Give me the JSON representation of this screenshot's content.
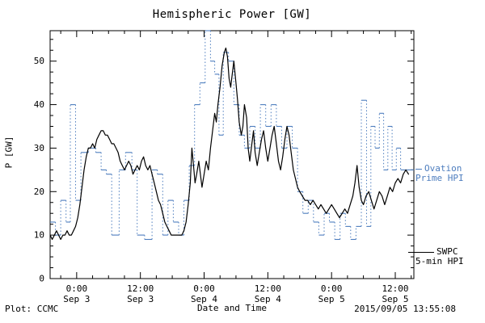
{
  "title": "Hemispheric Power [GW]",
  "footer": {
    "plot_credit": "Plot: CCMC",
    "timestamp": "2015/09/05 13:55:08"
  },
  "legend": {
    "ovation": {
      "line1": "Ovation",
      "line2": "Prime HPI",
      "color": "#4d7dbe"
    },
    "swpc": {
      "line1": "SWPC",
      "line2": "5-min HPI",
      "color": "#000000"
    }
  },
  "chart_data": {
    "type": "line",
    "title": "Hemispheric Power [GW]",
    "xlabel": "Date and Time",
    "ylabel": "P [GW]",
    "ylim": [
      0,
      57
    ],
    "xlim_hours": [
      -5,
      63.5
    ],
    "grid": false,
    "legend_position": "right-outside",
    "y_ticks": [
      0,
      10,
      20,
      30,
      40,
      50
    ],
    "x_ticks": [
      {
        "hour": 0,
        "time": "0:00",
        "date": "Sep 3"
      },
      {
        "hour": 12,
        "time": "12:00",
        "date": "Sep 3"
      },
      {
        "hour": 24,
        "time": "0:00",
        "date": "Sep 4"
      },
      {
        "hour": 36,
        "time": "12:00",
        "date": "Sep 4"
      },
      {
        "hour": 48,
        "time": "0:00",
        "date": "Sep 5"
      },
      {
        "hour": 60,
        "time": "12:00",
        "date": "Sep 5"
      }
    ],
    "series": [
      {
        "name": "SWPC 5-min HPI",
        "color": "#000000",
        "style": "solid-line",
        "points": [
          [
            -5,
            10
          ],
          [
            -4.6,
            9
          ],
          [
            -4.2,
            10
          ],
          [
            -3.8,
            11
          ],
          [
            -3.4,
            10
          ],
          [
            -3,
            9
          ],
          [
            -2.6,
            10
          ],
          [
            -2.2,
            10
          ],
          [
            -1.8,
            11
          ],
          [
            -1.4,
            10
          ],
          [
            -1,
            10
          ],
          [
            -0.6,
            11
          ],
          [
            -0.2,
            12
          ],
          [
            0.2,
            14
          ],
          [
            0.6,
            17
          ],
          [
            1,
            21
          ],
          [
            1.4,
            25
          ],
          [
            1.8,
            28
          ],
          [
            2.2,
            30
          ],
          [
            2.6,
            30
          ],
          [
            3,
            31
          ],
          [
            3.4,
            30
          ],
          [
            3.8,
            32
          ],
          [
            4.2,
            33
          ],
          [
            4.6,
            34
          ],
          [
            5,
            34
          ],
          [
            5.4,
            33
          ],
          [
            5.8,
            33
          ],
          [
            6.2,
            32
          ],
          [
            6.6,
            31
          ],
          [
            7,
            31
          ],
          [
            7.4,
            30
          ],
          [
            7.8,
            29
          ],
          [
            8.2,
            27
          ],
          [
            8.6,
            26
          ],
          [
            9,
            25
          ],
          [
            9.4,
            26
          ],
          [
            9.8,
            27
          ],
          [
            10.2,
            26
          ],
          [
            10.6,
            24
          ],
          [
            11,
            25
          ],
          [
            11.4,
            26
          ],
          [
            11.8,
            25
          ],
          [
            12.2,
            27
          ],
          [
            12.6,
            28
          ],
          [
            13,
            26
          ],
          [
            13.4,
            25
          ],
          [
            13.8,
            26
          ],
          [
            14.2,
            24
          ],
          [
            14.6,
            22
          ],
          [
            15,
            20
          ],
          [
            15.4,
            18
          ],
          [
            15.8,
            17
          ],
          [
            16.2,
            15
          ],
          [
            16.6,
            13
          ],
          [
            17,
            12
          ],
          [
            17.4,
            11
          ],
          [
            17.8,
            10
          ],
          [
            18.2,
            10
          ],
          [
            18.6,
            10
          ],
          [
            19,
            10
          ],
          [
            19.4,
            10
          ],
          [
            19.8,
            10
          ],
          [
            20.2,
            11
          ],
          [
            20.6,
            13
          ],
          [
            21,
            17
          ],
          [
            21.4,
            22
          ],
          [
            21.7,
            30
          ],
          [
            22,
            26
          ],
          [
            22.3,
            22
          ],
          [
            22.6,
            24
          ],
          [
            23,
            27
          ],
          [
            23.3,
            24
          ],
          [
            23.6,
            21
          ],
          [
            24,
            24
          ],
          [
            24.4,
            27
          ],
          [
            24.8,
            25
          ],
          [
            25.2,
            30
          ],
          [
            25.6,
            34
          ],
          [
            26,
            38
          ],
          [
            26.3,
            36
          ],
          [
            26.6,
            40
          ],
          [
            27,
            44
          ],
          [
            27.4,
            49
          ],
          [
            27.8,
            52
          ],
          [
            28.1,
            53
          ],
          [
            28.4,
            51
          ],
          [
            28.7,
            46
          ],
          [
            29,
            44
          ],
          [
            29.3,
            47
          ],
          [
            29.6,
            50
          ],
          [
            30,
            45
          ],
          [
            30.3,
            41
          ],
          [
            30.6,
            36
          ],
          [
            31,
            33
          ],
          [
            31.3,
            35
          ],
          [
            31.6,
            40
          ],
          [
            32,
            37
          ],
          [
            32.3,
            30
          ],
          [
            32.6,
            27
          ],
          [
            33,
            31
          ],
          [
            33.3,
            34
          ],
          [
            33.6,
            29
          ],
          [
            34,
            26
          ],
          [
            34.4,
            29
          ],
          [
            34.8,
            32
          ],
          [
            35.2,
            34
          ],
          [
            35.6,
            30
          ],
          [
            36,
            27
          ],
          [
            36.4,
            30
          ],
          [
            36.8,
            33
          ],
          [
            37.2,
            35
          ],
          [
            37.6,
            31
          ],
          [
            38,
            27
          ],
          [
            38.4,
            25
          ],
          [
            38.8,
            28
          ],
          [
            39.2,
            32
          ],
          [
            39.6,
            35
          ],
          [
            40,
            33
          ],
          [
            40.4,
            29
          ],
          [
            40.8,
            25
          ],
          [
            41.2,
            23
          ],
          [
            41.6,
            21
          ],
          [
            42,
            20
          ],
          [
            42.5,
            19
          ],
          [
            43,
            18
          ],
          [
            43.5,
            18
          ],
          [
            44,
            17
          ],
          [
            44.5,
            18
          ],
          [
            45,
            17
          ],
          [
            45.5,
            16
          ],
          [
            46,
            17
          ],
          [
            46.5,
            16
          ],
          [
            47,
            15
          ],
          [
            47.5,
            16
          ],
          [
            48,
            17
          ],
          [
            48.5,
            16
          ],
          [
            49,
            15
          ],
          [
            49.5,
            14
          ],
          [
            50,
            15
          ],
          [
            50.5,
            16
          ],
          [
            51,
            15
          ],
          [
            51.5,
            17
          ],
          [
            52,
            19
          ],
          [
            52.4,
            22
          ],
          [
            52.8,
            26
          ],
          [
            53.2,
            21
          ],
          [
            53.6,
            18
          ],
          [
            54,
            17
          ],
          [
            54.5,
            19
          ],
          [
            55,
            20
          ],
          [
            55.5,
            18
          ],
          [
            56,
            16
          ],
          [
            56.5,
            18
          ],
          [
            57,
            20
          ],
          [
            57.5,
            19
          ],
          [
            58,
            17
          ],
          [
            58.5,
            19
          ],
          [
            59,
            21
          ],
          [
            59.5,
            20
          ],
          [
            60,
            22
          ],
          [
            60.5,
            23
          ],
          [
            61,
            22
          ],
          [
            61.5,
            24
          ],
          [
            62,
            25
          ],
          [
            62.5,
            24
          ]
        ]
      },
      {
        "name": "Ovation Prime HPI",
        "color": "#4d7dbe",
        "style": "stepped-dotted",
        "steps": [
          [
            -5,
            13
          ],
          [
            -4,
            10
          ],
          [
            -3,
            18
          ],
          [
            -2,
            13
          ],
          [
            -1.2,
            40
          ],
          [
            -0.2,
            18
          ],
          [
            0.8,
            29
          ],
          [
            2.2,
            30
          ],
          [
            3.6,
            29
          ],
          [
            4.6,
            25
          ],
          [
            5.6,
            24
          ],
          [
            6.6,
            10
          ],
          [
            8,
            25
          ],
          [
            9.2,
            29
          ],
          [
            10.4,
            25
          ],
          [
            11.4,
            10
          ],
          [
            12.8,
            9
          ],
          [
            14.2,
            25
          ],
          [
            15.2,
            24
          ],
          [
            16.2,
            10
          ],
          [
            17.2,
            18
          ],
          [
            18.2,
            13
          ],
          [
            19.2,
            10
          ],
          [
            20.2,
            18
          ],
          [
            21.2,
            26
          ],
          [
            22.2,
            40
          ],
          [
            23.2,
            45
          ],
          [
            24.2,
            57
          ],
          [
            25.2,
            50
          ],
          [
            26,
            47
          ],
          [
            26.8,
            33
          ],
          [
            27.6,
            52
          ],
          [
            28.6,
            50
          ],
          [
            29.6,
            40
          ],
          [
            30.6,
            33
          ],
          [
            31.6,
            30
          ],
          [
            32.6,
            35
          ],
          [
            33.6,
            30
          ],
          [
            34.6,
            40
          ],
          [
            35.6,
            35
          ],
          [
            36.6,
            40
          ],
          [
            37.6,
            35
          ],
          [
            38.6,
            30
          ],
          [
            39.6,
            35
          ],
          [
            40.6,
            30
          ],
          [
            41.6,
            20
          ],
          [
            42.6,
            15
          ],
          [
            43.6,
            18
          ],
          [
            44.6,
            13
          ],
          [
            45.6,
            10
          ],
          [
            46.6,
            15
          ],
          [
            47.6,
            13
          ],
          [
            48.6,
            9
          ],
          [
            49.6,
            15
          ],
          [
            50.6,
            12
          ],
          [
            51.6,
            9
          ],
          [
            52.6,
            12
          ],
          [
            53.6,
            41
          ],
          [
            54.6,
            12
          ],
          [
            55.4,
            35
          ],
          [
            56.2,
            30
          ],
          [
            57,
            38
          ],
          [
            57.8,
            25
          ],
          [
            58.6,
            35
          ],
          [
            59.4,
            25
          ],
          [
            60.2,
            30
          ],
          [
            61,
            25
          ],
          [
            62,
            25
          ]
        ]
      }
    ]
  }
}
